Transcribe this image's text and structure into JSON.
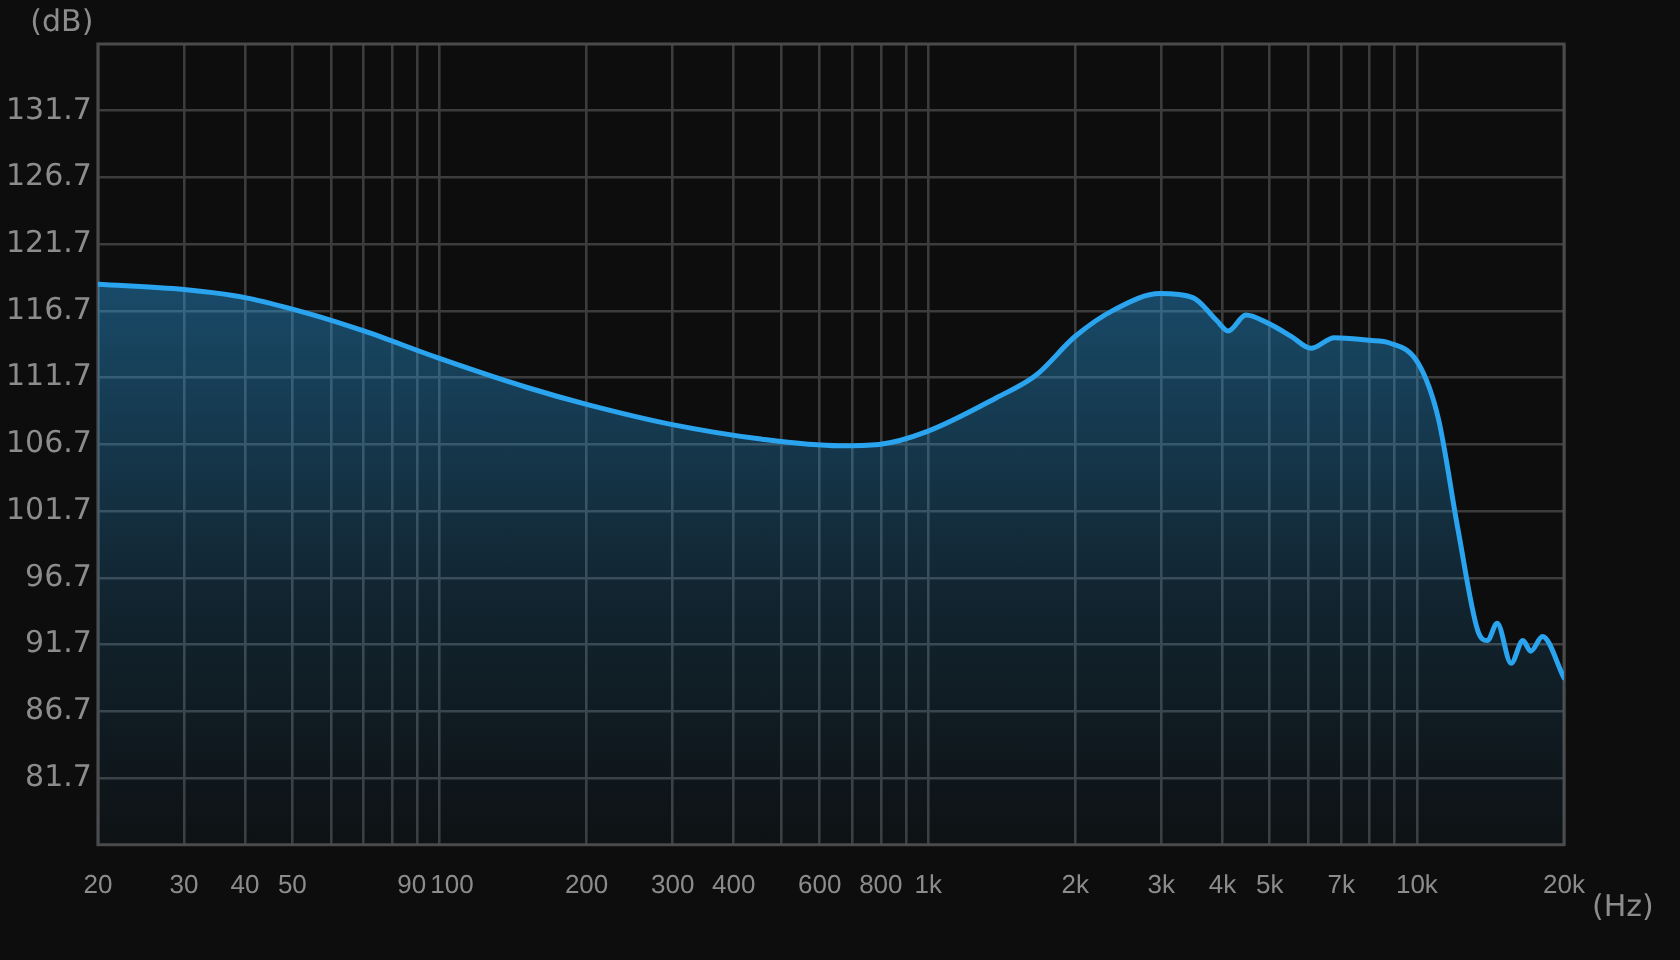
{
  "chart_data": {
    "type": "area",
    "xlabel": "(Hz)",
    "ylabel": "(dB)",
    "x": [
      20,
      30,
      40,
      54,
      70,
      99,
      150,
      200,
      298,
      455,
      659,
      793,
      1000,
      1380,
      1664,
      2000,
      2405,
      2980,
      3480,
      3890,
      4110,
      4470,
      4950,
      5530,
      6070,
      6780,
      8000,
      8790,
      10090,
      11070,
      12140,
      13310,
      13940,
      14600,
      15590,
      16480,
      17100,
      18070,
      20000
    ],
    "series": [
      {
        "color": "#2aa4ee",
        "values": [
          118.7,
          118.3,
          117.7,
          116.5,
          115.2,
          113.2,
          111.0,
          109.7,
          108.2,
          107.1,
          106.6,
          106.7,
          107.7,
          110.2,
          111.9,
          114.8,
          116.8,
          118.0,
          117.7,
          116.0,
          115.2,
          116.4,
          115.8,
          114.8,
          113.9,
          114.7,
          114.5,
          114.3,
          112.7,
          108.6,
          100.3,
          92.8,
          92.0,
          93.3,
          90.3,
          92.0,
          91.2,
          92.3,
          89.2
        ]
      }
    ],
    "log": "x",
    "xlim": [
      20,
      20000
    ],
    "ylim": [
      76.7,
      136.7
    ],
    "xticks": [
      20,
      30,
      40,
      50,
      {
        "value": 60,
        "label": null
      },
      {
        "value": 70,
        "label": null
      },
      {
        "value": 80,
        "label": null
      },
      90,
      100,
      200,
      300,
      400,
      {
        "value": 500,
        "label": null
      },
      600,
      {
        "value": 700,
        "label": null
      },
      800,
      {
        "value": 900,
        "label": null
      },
      {
        "value": 1000,
        "label": "1k"
      },
      {
        "value": 2000,
        "label": "2k"
      },
      {
        "value": 3000,
        "label": "3k"
      },
      {
        "value": 4000,
        "label": "4k"
      },
      {
        "value": 5000,
        "label": "5k"
      },
      {
        "value": 6000,
        "label": null
      },
      {
        "value": 7000,
        "label": "7k"
      },
      {
        "value": 8000,
        "label": null
      },
      {
        "value": 9000,
        "label": null
      },
      {
        "value": 10000,
        "label": "10k"
      },
      {
        "value": 20000,
        "label": "20k"
      }
    ],
    "yticks": [
      81.7,
      86.7,
      91.7,
      96.7,
      101.7,
      106.7,
      111.7,
      116.7,
      121.7,
      126.7,
      131.7
    ],
    "grid": true,
    "legend": false,
    "marker": "none",
    "line_style": "solid"
  }
}
